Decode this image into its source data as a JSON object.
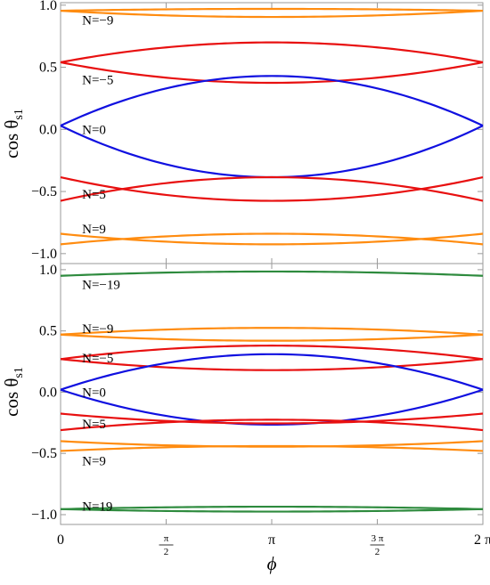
{
  "colors": {
    "N=0": "#1010e0",
    "N=5": "#e81010",
    "N=9": "#ff8c10",
    "N=19": "#2e8b3e"
  },
  "chart_data": [
    {
      "type": "line",
      "panel": "top",
      "xlabel": "ϕ",
      "ylabel": "cos θ",
      "ylabel_sub": "s1",
      "xlim": [
        0,
        6.2832
      ],
      "ylim": [
        -1.08,
        1.02
      ],
      "yticks": [
        {
          "value": 1.0,
          "label": "1.0"
        },
        {
          "value": 0.5,
          "label": "0.5"
        },
        {
          "value": 0.0,
          "label": "0.0"
        },
        {
          "value": -0.5,
          "label": "−0.5"
        },
        {
          "value": -1.0,
          "label": "−1.0"
        }
      ],
      "xticks": [
        {
          "value": 0,
          "label": "0"
        },
        {
          "value": 1.5708,
          "frac": [
            "π",
            "2"
          ]
        },
        {
          "value": 3.1416,
          "label": "π"
        },
        {
          "value": 4.7124,
          "frac": [
            "3 π",
            "2"
          ]
        },
        {
          "value": 6.2832,
          "label": "2 π"
        }
      ],
      "series": [
        {
          "group": "N=9",
          "color_key": "N=9",
          "y_edge": 0.955,
          "y_mid": 0.97
        },
        {
          "group": "N=9",
          "color_key": "N=9",
          "y_edge": 0.955,
          "y_mid": 0.905
        },
        {
          "group": "N=5",
          "color_key": "N=5",
          "y_edge": 0.54,
          "y_mid": 0.7
        },
        {
          "group": "N=5",
          "color_key": "N=5",
          "y_edge": 0.54,
          "y_mid": 0.375
        },
        {
          "group": "N=0",
          "color_key": "N=0",
          "y_edge": 0.03,
          "y_mid": 0.43
        },
        {
          "group": "N=0",
          "color_key": "N=0",
          "y_edge": 0.03,
          "y_mid": -0.385
        },
        {
          "group": "N=5",
          "color_key": "N=5",
          "y_edge": -0.385,
          "y_mid": -0.575,
          "reversed": true
        },
        {
          "group": "N=5",
          "color_key": "N=5",
          "y_edge": -0.575,
          "y_mid": -0.385,
          "reversed": true
        },
        {
          "group": "N=9",
          "color_key": "N=9",
          "y_edge": -0.84,
          "y_mid": -0.925,
          "reversed": true
        },
        {
          "group": "N=9",
          "color_key": "N=9",
          "y_edge": -0.925,
          "y_mid": -0.84,
          "reversed": true
        }
      ],
      "annotations": [
        {
          "text": "N=−9",
          "x": 0.32,
          "y": 0.88
        },
        {
          "text": "N=−5",
          "x": 0.32,
          "y": 0.4
        },
        {
          "text": "N=0",
          "x": 0.32,
          "y": 0.0
        },
        {
          "text": "N=5",
          "x": 0.32,
          "y": -0.52
        },
        {
          "text": "N=9",
          "x": 0.32,
          "y": -0.8
        }
      ]
    },
    {
      "type": "line",
      "panel": "bottom",
      "xlabel": "ϕ",
      "ylabel": "cos θ",
      "ylabel_sub": "s1",
      "xlim": [
        0,
        6.2832
      ],
      "ylim": [
        -1.08,
        1.05
      ],
      "yticks": [
        {
          "value": 1.0,
          "label": "1.0"
        },
        {
          "value": 0.5,
          "label": "0.5"
        },
        {
          "value": 0.0,
          "label": "0.0"
        },
        {
          "value": -0.5,
          "label": "−0.5"
        },
        {
          "value": -1.0,
          "label": "−1.0"
        }
      ],
      "xticks": [
        {
          "value": 0,
          "label": "0"
        },
        {
          "value": 1.5708,
          "frac": [
            "π",
            "2"
          ]
        },
        {
          "value": 3.1416,
          "label": "π"
        },
        {
          "value": 4.7124,
          "frac": [
            "3 π",
            "2"
          ]
        },
        {
          "value": 6.2832,
          "label": "2 π"
        }
      ],
      "series": [
        {
          "group": "N=19",
          "color_key": "N=19",
          "y_edge": 0.95,
          "y_mid": 0.985
        },
        {
          "group": "N=9",
          "color_key": "N=9",
          "y_edge": 0.47,
          "y_mid": 0.525
        },
        {
          "group": "N=9",
          "color_key": "N=9",
          "y_edge": 0.47,
          "y_mid": 0.42
        },
        {
          "group": "N=5",
          "color_key": "N=5",
          "y_edge": 0.27,
          "y_mid": 0.38
        },
        {
          "group": "N=5",
          "color_key": "N=5",
          "y_edge": 0.27,
          "y_mid": 0.18
        },
        {
          "group": "N=0",
          "color_key": "N=0",
          "y_edge": 0.02,
          "y_mid": 0.31
        },
        {
          "group": "N=0",
          "color_key": "N=0",
          "y_edge": 0.02,
          "y_mid": -0.265
        },
        {
          "group": "N=5",
          "color_key": "N=5",
          "y_edge": -0.175,
          "y_mid": -0.255,
          "reversed": true
        },
        {
          "group": "N=5",
          "color_key": "N=5",
          "y_edge": -0.31,
          "y_mid": -0.225,
          "reversed": true
        },
        {
          "group": "N=9",
          "color_key": "N=9",
          "y_edge": -0.4,
          "y_mid": -0.445,
          "reversed": true
        },
        {
          "group": "N=9",
          "color_key": "N=9",
          "y_edge": -0.48,
          "y_mid": -0.44,
          "reversed": true
        },
        {
          "group": "N=19",
          "color_key": "N=19",
          "y_edge": -0.955,
          "y_mid": -0.935
        },
        {
          "group": "N=19",
          "color_key": "N=19",
          "y_edge": -0.955,
          "y_mid": -0.975
        }
      ],
      "annotations": [
        {
          "text": "N=−19",
          "x": 0.32,
          "y": 0.88
        },
        {
          "text": "N=−9",
          "x": 0.32,
          "y": 0.52
        },
        {
          "text": "N=−5",
          "x": 0.32,
          "y": 0.28
        },
        {
          "text": "N=0",
          "x": 0.32,
          "y": 0.0
        },
        {
          "text": "N=5",
          "x": 0.32,
          "y": -0.26
        },
        {
          "text": "N=9",
          "x": 0.32,
          "y": -0.56
        },
        {
          "text": "N=19",
          "x": 0.32,
          "y": -0.93
        }
      ]
    }
  ]
}
